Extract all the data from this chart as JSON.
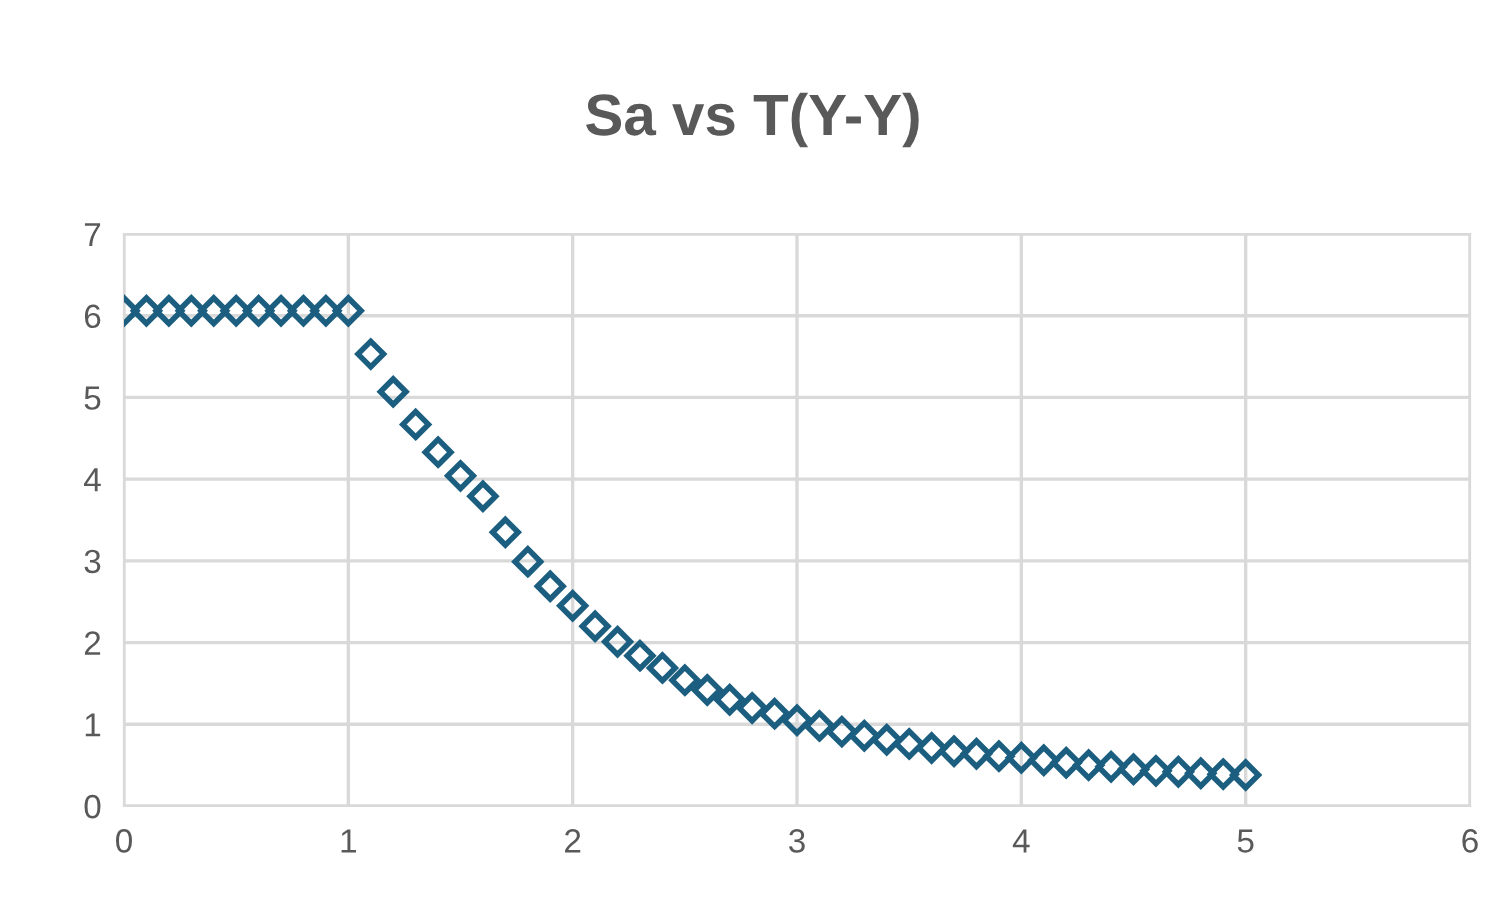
{
  "chart_data": {
    "type": "scatter",
    "title": "Sa vs T(Y-Y)",
    "x": [
      0,
      0.1,
      0.2,
      0.3,
      0.4,
      0.5,
      0.6,
      0.7,
      0.8,
      0.9,
      1.0,
      1.1,
      1.2,
      1.3,
      1.4,
      1.5,
      1.6,
      1.7,
      1.8,
      1.9,
      2.0,
      2.1,
      2.2,
      2.3,
      2.4,
      2.5,
      2.6,
      2.7,
      2.8,
      2.9,
      3.0,
      3.1,
      3.2,
      3.3,
      3.4,
      3.5,
      3.6,
      3.7,
      3.8,
      3.9,
      4.0,
      4.1,
      4.2,
      4.3,
      4.4,
      4.5,
      4.6,
      4.7,
      4.8,
      4.9,
      5.0
    ],
    "series": [
      {
        "color": "#1b5e80",
        "values": [
          6.06,
          6.06,
          6.06,
          6.06,
          6.06,
          6.06,
          6.06,
          6.06,
          6.06,
          6.06,
          6.06,
          5.53,
          5.07,
          4.67,
          4.33,
          4.04,
          3.79,
          3.35,
          2.99,
          2.69,
          2.45,
          2.2,
          2.01,
          1.84,
          1.69,
          1.54,
          1.42,
          1.3,
          1.2,
          1.13,
          1.05,
          0.98,
          0.91,
          0.86,
          0.81,
          0.76,
          0.71,
          0.67,
          0.64,
          0.61,
          0.59,
          0.56,
          0.53,
          0.5,
          0.48,
          0.45,
          0.43,
          0.42,
          0.4,
          0.39,
          0.38
        ]
      }
    ],
    "xlim": [
      0,
      6
    ],
    "xticks": [
      0,
      1,
      2,
      3,
      4,
      5,
      6
    ],
    "ylim": [
      0,
      7
    ],
    "yticks": [
      0,
      1,
      2,
      3,
      4,
      5,
      6,
      7
    ],
    "grid": true,
    "marker": "diamond"
  }
}
